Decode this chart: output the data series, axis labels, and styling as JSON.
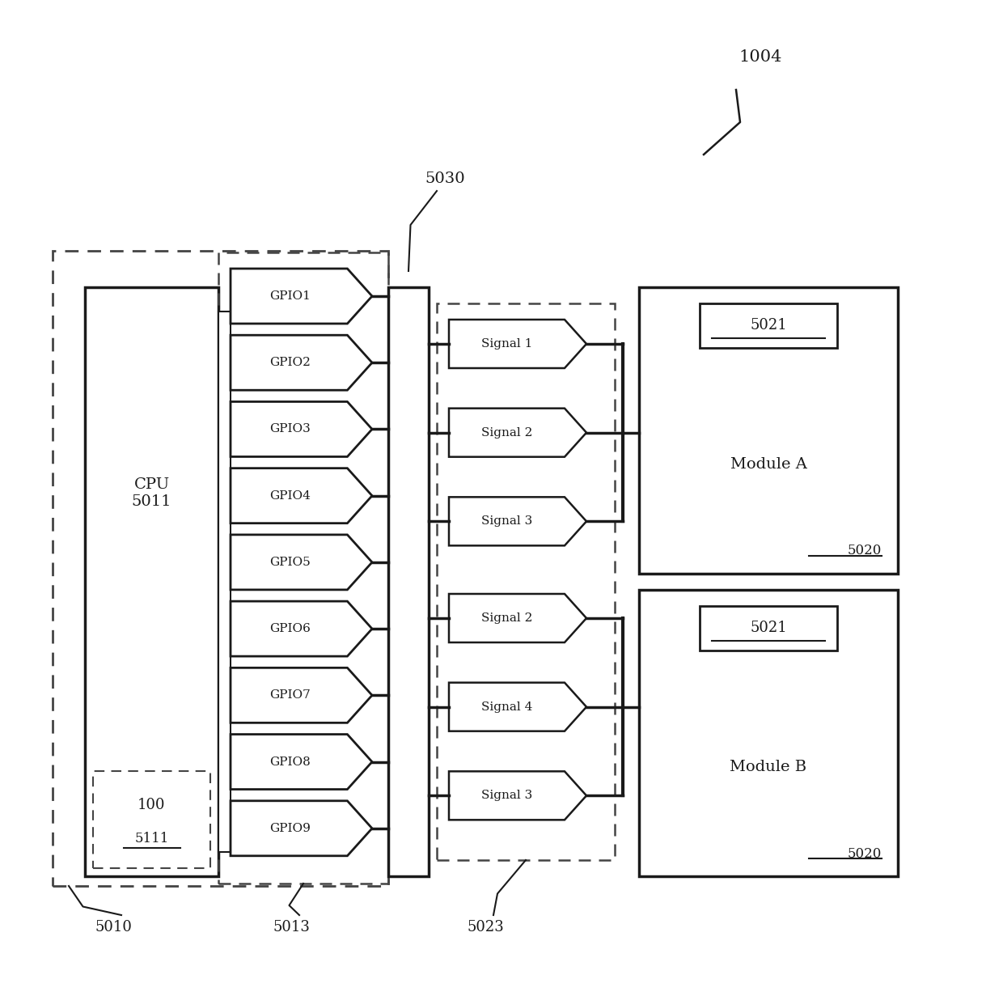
{
  "bg_color": "#ffffff",
  "line_color": "#1a1a1a",
  "dashed_color": "#444444",
  "label_1004": "1004",
  "label_5030": "5030",
  "label_5010": "5010",
  "label_5013": "5013",
  "label_5023": "5023",
  "label_cpu": "CPU\n5011",
  "label_100": "100",
  "label_5111": "5111",
  "gpio_labels": [
    "GPIO1",
    "GPIO2",
    "GPIO3",
    "GPIO4",
    "GPIO5",
    "GPIO6",
    "GPIO7",
    "GPIO8",
    "GPIO9"
  ],
  "signal_a_labels": [
    "Signal 1",
    "Signal 2",
    "Signal 3"
  ],
  "signal_b_labels": [
    "Signal 2",
    "Signal 4",
    "Signal 3"
  ],
  "module_a_label": "Module A",
  "module_b_label": "Module B",
  "label_5021": "5021",
  "label_5020": "5020"
}
